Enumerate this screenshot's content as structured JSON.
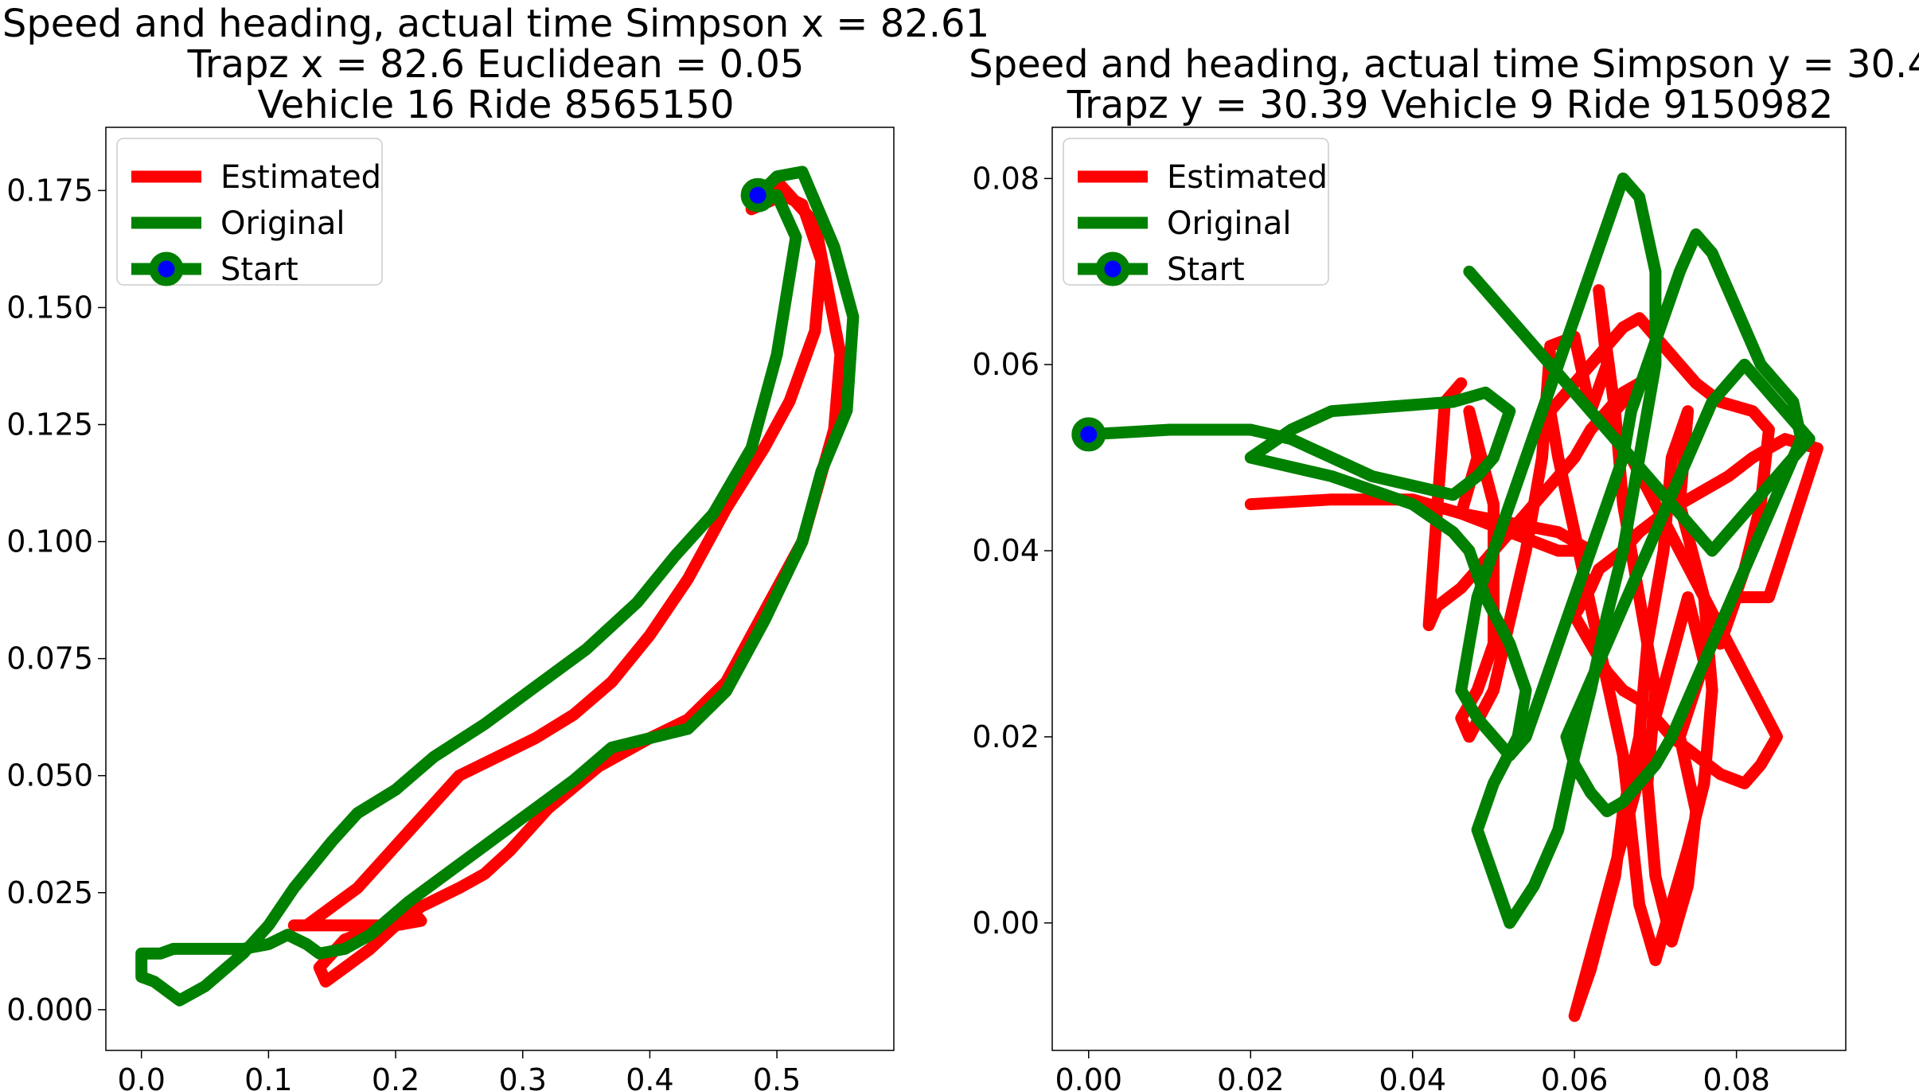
{
  "chart_data": [
    {
      "type": "line",
      "title_lines": [
        "Speed and heading, actual time Simpson x = 82.61",
        "Trapz x = 82.6 Euclidean = 0.05",
        "Vehicle 16 Ride 8565150"
      ],
      "xlabel": "",
      "ylabel": "",
      "xlim": [
        -0.028,
        0.592
      ],
      "ylim": [
        -0.0087,
        0.1885
      ],
      "x_ticks": [
        0.0,
        0.1,
        0.2,
        0.3,
        0.4,
        0.5
      ],
      "x_tick_labels": [
        "0.0",
        "0.1",
        "0.2",
        "0.3",
        "0.4",
        "0.5"
      ],
      "y_ticks": [
        0.0,
        0.025,
        0.05,
        0.075,
        0.1,
        0.125,
        0.15,
        0.175
      ],
      "y_tick_labels": [
        "0.000",
        "0.025",
        "0.050",
        "0.075",
        "0.100",
        "0.125",
        "0.150",
        "0.175"
      ],
      "grid": false,
      "legend_position": "top-left",
      "legend": [
        "Estimated",
        "Original",
        "Start"
      ],
      "series": [
        {
          "name": "Estimated",
          "color": "#ff0000",
          "x": [
            0.48,
            0.5,
            0.53,
            0.55,
            0.545,
            0.52,
            0.49,
            0.46,
            0.43,
            0.4,
            0.36,
            0.32,
            0.29,
            0.27,
            0.25,
            0.22,
            0.2,
            0.18,
            0.16,
            0.145,
            0.14,
            0.15,
            0.16,
            0.18,
            0.2,
            0.21,
            0.22,
            0.2,
            0.18,
            0.16,
            0.14,
            0.12,
            0.13,
            0.15,
            0.17,
            0.19,
            0.21,
            0.23,
            0.25,
            0.28,
            0.31,
            0.34,
            0.37,
            0.4,
            0.43,
            0.46,
            0.49,
            0.51,
            0.53,
            0.535,
            0.52,
            0.505,
            0.48
          ],
          "y": [
            0.171,
            0.177,
            0.168,
            0.14,
            0.124,
            0.1,
            0.085,
            0.07,
            0.062,
            0.058,
            0.052,
            0.043,
            0.034,
            0.029,
            0.026,
            0.022,
            0.018,
            0.013,
            0.009,
            0.006,
            0.009,
            0.012,
            0.015,
            0.017,
            0.019,
            0.022,
            0.019,
            0.018,
            0.018,
            0.018,
            0.018,
            0.018,
            0.018,
            0.022,
            0.026,
            0.032,
            0.038,
            0.044,
            0.05,
            0.054,
            0.058,
            0.063,
            0.07,
            0.08,
            0.092,
            0.107,
            0.12,
            0.13,
            0.145,
            0.16,
            0.172,
            0.174,
            0.171
          ]
        },
        {
          "name": "Original",
          "color": "#008000",
          "x": [
            0.485,
            0.5,
            0.52,
            0.545,
            0.56,
            0.555,
            0.535,
            0.52,
            0.49,
            0.46,
            0.43,
            0.4,
            0.37,
            0.34,
            0.3,
            0.27,
            0.24,
            0.21,
            0.18,
            0.16,
            0.14,
            0.13,
            0.115,
            0.1,
            0.08,
            0.06,
            0.045,
            0.035,
            0.025,
            0.015,
            0.0,
            0.0,
            0.01,
            0.03,
            0.05,
            0.08,
            0.1,
            0.12,
            0.135,
            0.15,
            0.17,
            0.2,
            0.23,
            0.27,
            0.31,
            0.35,
            0.39,
            0.42,
            0.45,
            0.48,
            0.5,
            0.515,
            0.5,
            0.485
          ],
          "y": [
            0.174,
            0.178,
            0.179,
            0.163,
            0.148,
            0.128,
            0.115,
            0.1,
            0.083,
            0.068,
            0.06,
            0.058,
            0.056,
            0.049,
            0.041,
            0.035,
            0.029,
            0.023,
            0.016,
            0.013,
            0.012,
            0.014,
            0.016,
            0.014,
            0.013,
            0.013,
            0.013,
            0.013,
            0.013,
            0.012,
            0.012,
            0.007,
            0.006,
            0.002,
            0.005,
            0.012,
            0.018,
            0.026,
            0.031,
            0.036,
            0.042,
            0.047,
            0.054,
            0.061,
            0.069,
            0.077,
            0.087,
            0.097,
            0.106,
            0.12,
            0.14,
            0.165,
            0.174,
            0.174
          ]
        }
      ],
      "start": {
        "x": 0.485,
        "y": 0.174,
        "color": "#008000",
        "inner_color": "#0000ff"
      }
    },
    {
      "type": "line",
      "title_lines": [
        "Speed and heading, actual time Simpson y = 30.4",
        "Trapz y = 30.39 Vehicle 9 Ride 9150982"
      ],
      "xlabel": "",
      "ylabel": "",
      "xlim": [
        -0.0045,
        0.0935
      ],
      "ylim": [
        -0.0137,
        0.0855
      ],
      "x_ticks": [
        0.0,
        0.02,
        0.04,
        0.06,
        0.08
      ],
      "x_tick_labels": [
        "0.00",
        "0.02",
        "0.04",
        "0.06",
        "0.08"
      ],
      "y_ticks": [
        0.0,
        0.02,
        0.04,
        0.06,
        0.08
      ],
      "y_tick_labels": [
        "0.00",
        "0.02",
        "0.04",
        "0.06",
        "0.08"
      ],
      "grid": false,
      "legend_position": "top-left",
      "legend": [
        "Estimated",
        "Original",
        "Start"
      ],
      "series": [
        {
          "name": "Estimated",
          "color": "#ff0000",
          "x": [
            0.02,
            0.03,
            0.04,
            0.046,
            0.052,
            0.058,
            0.062,
            0.058,
            0.046,
            0.048,
            0.047,
            0.05,
            0.05,
            0.048,
            0.046,
            0.047,
            0.05,
            0.054,
            0.056,
            0.057,
            0.06,
            0.062,
            0.064,
            0.063,
            0.065,
            0.066,
            0.068,
            0.07,
            0.069,
            0.07,
            0.072,
            0.074,
            0.075,
            0.073,
            0.076,
            0.074,
            0.06,
            0.062,
            0.065,
            0.066,
            0.068,
            0.069,
            0.071,
            0.072,
            0.074,
            0.073,
            0.076,
            0.077,
            0.076,
            0.074,
            0.072,
            0.07,
            0.068,
            0.067,
            0.066,
            0.064,
            0.062,
            0.06,
            0.058,
            0.057,
            0.06,
            0.062,
            0.064,
            0.066,
            0.068,
            0.07,
            0.073,
            0.075,
            0.078,
            0.082,
            0.084,
            0.083,
            0.081,
            0.079,
            0.078,
            0.08,
            0.084,
            0.087,
            0.09,
            0.086,
            0.082,
            0.079,
            0.075,
            0.071,
            0.068,
            0.066,
            0.063,
            0.062,
            0.06,
            0.062,
            0.064,
            0.066,
            0.068,
            0.07,
            0.072,
            0.075,
            0.078,
            0.081,
            0.083,
            0.085,
            0.082,
            0.079,
            0.076,
            0.073,
            0.07,
            0.067,
            0.065,
            0.064,
            0.066,
            0.068,
            0.066,
            0.064,
            0.062,
            0.06,
            0.058,
            0.056,
            0.054,
            0.052,
            0.05,
            0.048,
            0.046,
            0.043,
            0.042,
            0.044,
            0.046
          ],
          "y": [
            0.045,
            0.0455,
            0.0455,
            0.044,
            0.042,
            0.04,
            0.04,
            0.042,
            0.044,
            0.05,
            0.055,
            0.045,
            0.03,
            0.025,
            0.022,
            0.02,
            0.025,
            0.04,
            0.05,
            0.062,
            0.063,
            0.055,
            0.06,
            0.068,
            0.055,
            0.045,
            0.035,
            0.025,
            0.015,
            0.005,
            -0.002,
            0.004,
            0.012,
            0.02,
            0.028,
            0.035,
            -0.01,
            -0.005,
            0.005,
            0.012,
            0.02,
            0.03,
            0.04,
            0.05,
            0.055,
            0.045,
            0.035,
            0.025,
            0.015,
            0.008,
            0.002,
            -0.004,
            0.002,
            0.01,
            0.018,
            0.026,
            0.034,
            0.042,
            0.05,
            0.055,
            0.058,
            0.06,
            0.062,
            0.064,
            0.065,
            0.063,
            0.06,
            0.058,
            0.056,
            0.055,
            0.053,
            0.045,
            0.038,
            0.033,
            0.03,
            0.035,
            0.035,
            0.043,
            0.051,
            0.052,
            0.05,
            0.048,
            0.046,
            0.044,
            0.042,
            0.04,
            0.038,
            0.036,
            0.033,
            0.03,
            0.027,
            0.025,
            0.024,
            0.022,
            0.02,
            0.018,
            0.016,
            0.015,
            0.017,
            0.02,
            0.025,
            0.03,
            0.035,
            0.04,
            0.045,
            0.05,
            0.052,
            0.054,
            0.056,
            0.058,
            0.057,
            0.055,
            0.053,
            0.05,
            0.048,
            0.046,
            0.044,
            0.042,
            0.04,
            0.038,
            0.036,
            0.034,
            0.032,
            0.056,
            0.058
          ]
        },
        {
          "name": "Original",
          "color": "#008000",
          "x": [
            0.0,
            0.01,
            0.02,
            0.025,
            0.03,
            0.035,
            0.04,
            0.045,
            0.048,
            0.05,
            0.052,
            0.049,
            0.045,
            0.03,
            0.025,
            0.02,
            0.03,
            0.04,
            0.045,
            0.047,
            0.049,
            0.052,
            0.054,
            0.053,
            0.05,
            0.048,
            0.05,
            0.052,
            0.055,
            0.058,
            0.06,
            0.062,
            0.064,
            0.066,
            0.068,
            0.07,
            0.07,
            0.068,
            0.066,
            0.064,
            0.062,
            0.06,
            0.058,
            0.056,
            0.054,
            0.052,
            0.05,
            0.048,
            0.047,
            0.046,
            0.048,
            0.05,
            0.052,
            0.054,
            0.056,
            0.058,
            0.06,
            0.062,
            0.064,
            0.066,
            0.067,
            0.069,
            0.071,
            0.073,
            0.075,
            0.077,
            0.079,
            0.081,
            0.083,
            0.085,
            0.087,
            0.088,
            0.086,
            0.084,
            0.082,
            0.08,
            0.078,
            0.076,
            0.074,
            0.072,
            0.07,
            0.068,
            0.066,
            0.064,
            0.062,
            0.06,
            0.059,
            0.061,
            0.063,
            0.065,
            0.067,
            0.069,
            0.071,
            0.073,
            0.075,
            0.077,
            0.079,
            0.081,
            0.083,
            0.085,
            0.087,
            0.089,
            0.087,
            0.085,
            0.083,
            0.081,
            0.079,
            0.077,
            0.075,
            0.073,
            0.071,
            0.069,
            0.067,
            0.065,
            0.063,
            0.061,
            0.059,
            0.057,
            0.055,
            0.053,
            0.051,
            0.049,
            0.047
          ],
          "y": [
            0.0525,
            0.053,
            0.053,
            0.052,
            0.05,
            0.048,
            0.047,
            0.046,
            0.048,
            0.05,
            0.055,
            0.057,
            0.056,
            0.055,
            0.053,
            0.05,
            0.048,
            0.045,
            0.042,
            0.04,
            0.035,
            0.03,
            0.025,
            0.02,
            0.015,
            0.01,
            0.005,
            0.0,
            0.004,
            0.01,
            0.018,
            0.025,
            0.033,
            0.04,
            0.05,
            0.06,
            0.07,
            0.078,
            0.08,
            0.075,
            0.07,
            0.065,
            0.06,
            0.055,
            0.05,
            0.045,
            0.04,
            0.035,
            0.03,
            0.025,
            0.022,
            0.02,
            0.018,
            0.02,
            0.025,
            0.03,
            0.035,
            0.04,
            0.045,
            0.05,
            0.055,
            0.06,
            0.065,
            0.07,
            0.074,
            0.072,
            0.068,
            0.064,
            0.06,
            0.058,
            0.056,
            0.052,
            0.048,
            0.044,
            0.04,
            0.036,
            0.032,
            0.028,
            0.024,
            0.02,
            0.017,
            0.015,
            0.013,
            0.012,
            0.014,
            0.017,
            0.02,
            0.024,
            0.028,
            0.032,
            0.036,
            0.04,
            0.044,
            0.048,
            0.052,
            0.056,
            0.058,
            0.06,
            0.058,
            0.056,
            0.054,
            0.052,
            0.05,
            0.048,
            0.046,
            0.044,
            0.042,
            0.04,
            0.042,
            0.044,
            0.046,
            0.048,
            0.05,
            0.052,
            0.054,
            0.056,
            0.058,
            0.06,
            0.062,
            0.064,
            0.066,
            0.068,
            0.07
          ]
        }
      ],
      "start": {
        "x": 0.0,
        "y": 0.0525,
        "color": "#008000",
        "inner_color": "#0000ff"
      }
    }
  ]
}
